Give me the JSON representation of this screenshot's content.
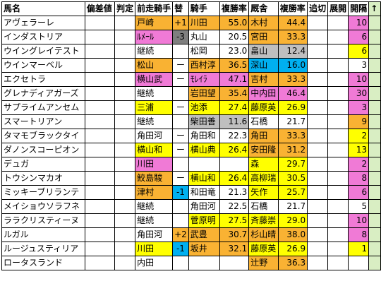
{
  "colors": {
    "orange": "#f9b233",
    "pink": "#f07ad6",
    "yellow": "#ffff00",
    "gray": "#bfbfbf",
    "darkgray": "#7f7f7f",
    "blue": "#00b0f0",
    "white": "#ffffff",
    "green": "#d9eec3"
  },
  "headers": [
    "馬名",
    "偏差値",
    "判定",
    "前走騎手",
    "替",
    "騎手",
    "複勝率",
    "厩舎",
    "複勝率",
    "追切",
    "展開",
    "開隔",
    "↑"
  ],
  "rows": [
    {
      "horse": "アヴェラーレ",
      "prev": "戸崎",
      "prev_c": "orange",
      "chg": "+1",
      "chg_c": "orange",
      "jockey": "川田",
      "jock_c": "orange",
      "jrate": "55.0",
      "jrate_c": "orange",
      "stable": "木村",
      "stab_c": "orange",
      "srate": "44.4",
      "srate_c": "orange",
      "gap": "10",
      "gap_c": "pink"
    },
    {
      "horse": "インダストリア",
      "prev": "ﾙﾒｰﾙ",
      "prev_c": "pink",
      "chg": "-3",
      "chg_c": "darkgray",
      "jockey": "丸山",
      "jock_c": "white",
      "jrate": "20.5",
      "jrate_c": "white",
      "stable": "宮田",
      "stab_c": "orange",
      "srate": "33.3",
      "srate_c": "orange",
      "gap": "6",
      "gap_c": "pink"
    },
    {
      "horse": "ウイングレイテスト",
      "prev": "継続",
      "prev_c": "white",
      "chg": "",
      "chg_c": "white",
      "jockey": "松岡",
      "jock_c": "white",
      "jrate": "23.0",
      "jrate_c": "white",
      "stable": "畠山",
      "stab_c": "gray",
      "srate": "12.4",
      "srate_c": "gray",
      "gap": "6",
      "gap_c": "yellow"
    },
    {
      "horse": "ウインマーベル",
      "prev": "松山",
      "prev_c": "orange",
      "chg": "ー",
      "chg_c": "white",
      "jockey": "西村淳",
      "jock_c": "orange",
      "jrate": "36.5",
      "jrate_c": "orange",
      "stable": "深山",
      "stab_c": "blue",
      "srate": "16.0",
      "srate_c": "blue",
      "gap": "3",
      "gap_c": "white"
    },
    {
      "horse": "エクセトラ",
      "prev": "横山武",
      "prev_c": "pink",
      "chg": "ー",
      "chg_c": "white",
      "jockey": "ﾓﾚｲﾗ",
      "jock_c": "pink",
      "jrate": "47.1",
      "jrate_c": "pink",
      "stable": "吉村",
      "stab_c": "orange",
      "srate": "33.3",
      "srate_c": "orange",
      "gap": "10",
      "gap_c": "pink"
    },
    {
      "horse": "グレナディアガーズ",
      "prev": "継続",
      "prev_c": "white",
      "chg": "",
      "chg_c": "white",
      "jockey": "岩田望",
      "jock_c": "orange",
      "jrate": "35.4",
      "jrate_c": "orange",
      "stable": "中内田",
      "stab_c": "pink",
      "srate": "46.4",
      "srate_c": "pink",
      "gap": "30",
      "gap_c": "pink"
    },
    {
      "horse": "サプライムアンセム",
      "prev": "三浦",
      "prev_c": "yellow",
      "chg": "ー",
      "chg_c": "white",
      "jockey": "池添",
      "jock_c": "yellow",
      "jrate": "27.4",
      "jrate_c": "yellow",
      "stable": "藤原英",
      "stab_c": "yellow",
      "srate": "26.9",
      "srate_c": "yellow",
      "gap": "3",
      "gap_c": "pink"
    },
    {
      "horse": "スマートリアン",
      "prev": "継続",
      "prev_c": "white",
      "chg": "",
      "chg_c": "white",
      "jockey": "柴田善",
      "jock_c": "gray",
      "jrate": "11.6",
      "jrate_c": "gray",
      "stable": "石橋",
      "stab_c": "white",
      "srate": "21.7",
      "srate_c": "white",
      "gap": "9",
      "gap_c": "orange"
    },
    {
      "horse": "タマモブラックタイ",
      "prev": "角田河",
      "prev_c": "white",
      "chg": "ー",
      "chg_c": "white",
      "jockey": "角田和",
      "jock_c": "white",
      "jrate": "22.3",
      "jrate_c": "white",
      "stable": "角田",
      "stab_c": "orange",
      "srate": "33.3",
      "srate_c": "orange",
      "gap": "2",
      "gap_c": "yellow"
    },
    {
      "horse": "ダノンスコーピオン",
      "prev": "横山和",
      "prev_c": "yellow",
      "chg": "ー",
      "chg_c": "white",
      "jockey": "横山典",
      "jock_c": "yellow",
      "jrate": "26.4",
      "jrate_c": "yellow",
      "stable": "安田隆",
      "stab_c": "orange",
      "srate": "31.2",
      "srate_c": "orange",
      "gap": "13",
      "gap_c": "yellow"
    },
    {
      "horse": "デュガ",
      "prev": "川田",
      "prev_c": "pink",
      "chg": "",
      "chg_c": "white",
      "jockey": "",
      "jock_c": "white",
      "jrate": "",
      "jrate_c": "white",
      "stable": "森",
      "stab_c": "yellow",
      "srate": "29.7",
      "srate_c": "yellow",
      "gap": "2",
      "gap_c": "pink"
    },
    {
      "horse": "トウシンマカオ",
      "prev": "鮫島駿",
      "prev_c": "orange",
      "chg": "ー",
      "chg_c": "white",
      "jockey": "横山和",
      "jock_c": "yellow",
      "jrate": "26.4",
      "jrate_c": "yellow",
      "stable": "高柳瑞",
      "stab_c": "yellow",
      "srate": "30.5",
      "srate_c": "yellow",
      "gap": "8",
      "gap_c": "pink"
    },
    {
      "horse": "ミッキーブリランテ",
      "prev": "津村",
      "prev_c": "orange",
      "chg": "-1",
      "chg_c": "blue",
      "jockey": "和田竜",
      "jock_c": "white",
      "jrate": "21.3",
      "jrate_c": "white",
      "stable": "矢作",
      "stab_c": "yellow",
      "srate": "25.7",
      "srate_c": "yellow",
      "gap": "6",
      "gap_c": "pink"
    },
    {
      "horse": "メイショウソラフネ",
      "prev": "継続",
      "prev_c": "white",
      "chg": "",
      "chg_c": "white",
      "jockey": "角田河",
      "jock_c": "white",
      "jrate": "22.5",
      "jrate_c": "white",
      "stable": "石橋",
      "stab_c": "white",
      "srate": "21.7",
      "srate_c": "white",
      "gap": "5",
      "gap_c": "white"
    },
    {
      "horse": "ララクリスティーヌ",
      "prev": "継続",
      "prev_c": "white",
      "chg": "",
      "chg_c": "white",
      "jockey": "菅原明",
      "jock_c": "yellow",
      "jrate": "27.5",
      "jrate_c": "yellow",
      "stable": "斉藤崇",
      "stab_c": "yellow",
      "srate": "29.0",
      "srate_c": "yellow",
      "gap": "10",
      "gap_c": "pink"
    },
    {
      "horse": "ルガル",
      "prev": "角田河",
      "prev_c": "white",
      "chg": "+2",
      "chg_c": "orange",
      "jockey": "武豊",
      "jock_c": "orange",
      "jrate": "30.7",
      "jrate_c": "orange",
      "stable": "杉山晴",
      "stab_c": "orange",
      "srate": "38.0",
      "srate_c": "orange",
      "gap": "8",
      "gap_c": "pink"
    },
    {
      "horse": "ルージュスティリア",
      "prev": "川田",
      "prev_c": "yellow",
      "chg": "-1",
      "chg_c": "blue",
      "jockey": "坂井",
      "jock_c": "orange",
      "jrate": "32.1",
      "jrate_c": "orange",
      "stable": "藤原英",
      "stab_c": "yellow",
      "srate": "26.9",
      "srate_c": "yellow",
      "gap": "1",
      "gap_c": "yellow"
    },
    {
      "horse": "ロータスランド",
      "prev": "内田",
      "prev_c": "white",
      "chg": "",
      "chg_c": "white",
      "jockey": "",
      "jock_c": "white",
      "jrate": "",
      "jrate_c": "white",
      "stable": "辻野",
      "stab_c": "orange",
      "srate": "36.3",
      "srate_c": "orange",
      "gap": "",
      "gap_c": "white"
    }
  ]
}
